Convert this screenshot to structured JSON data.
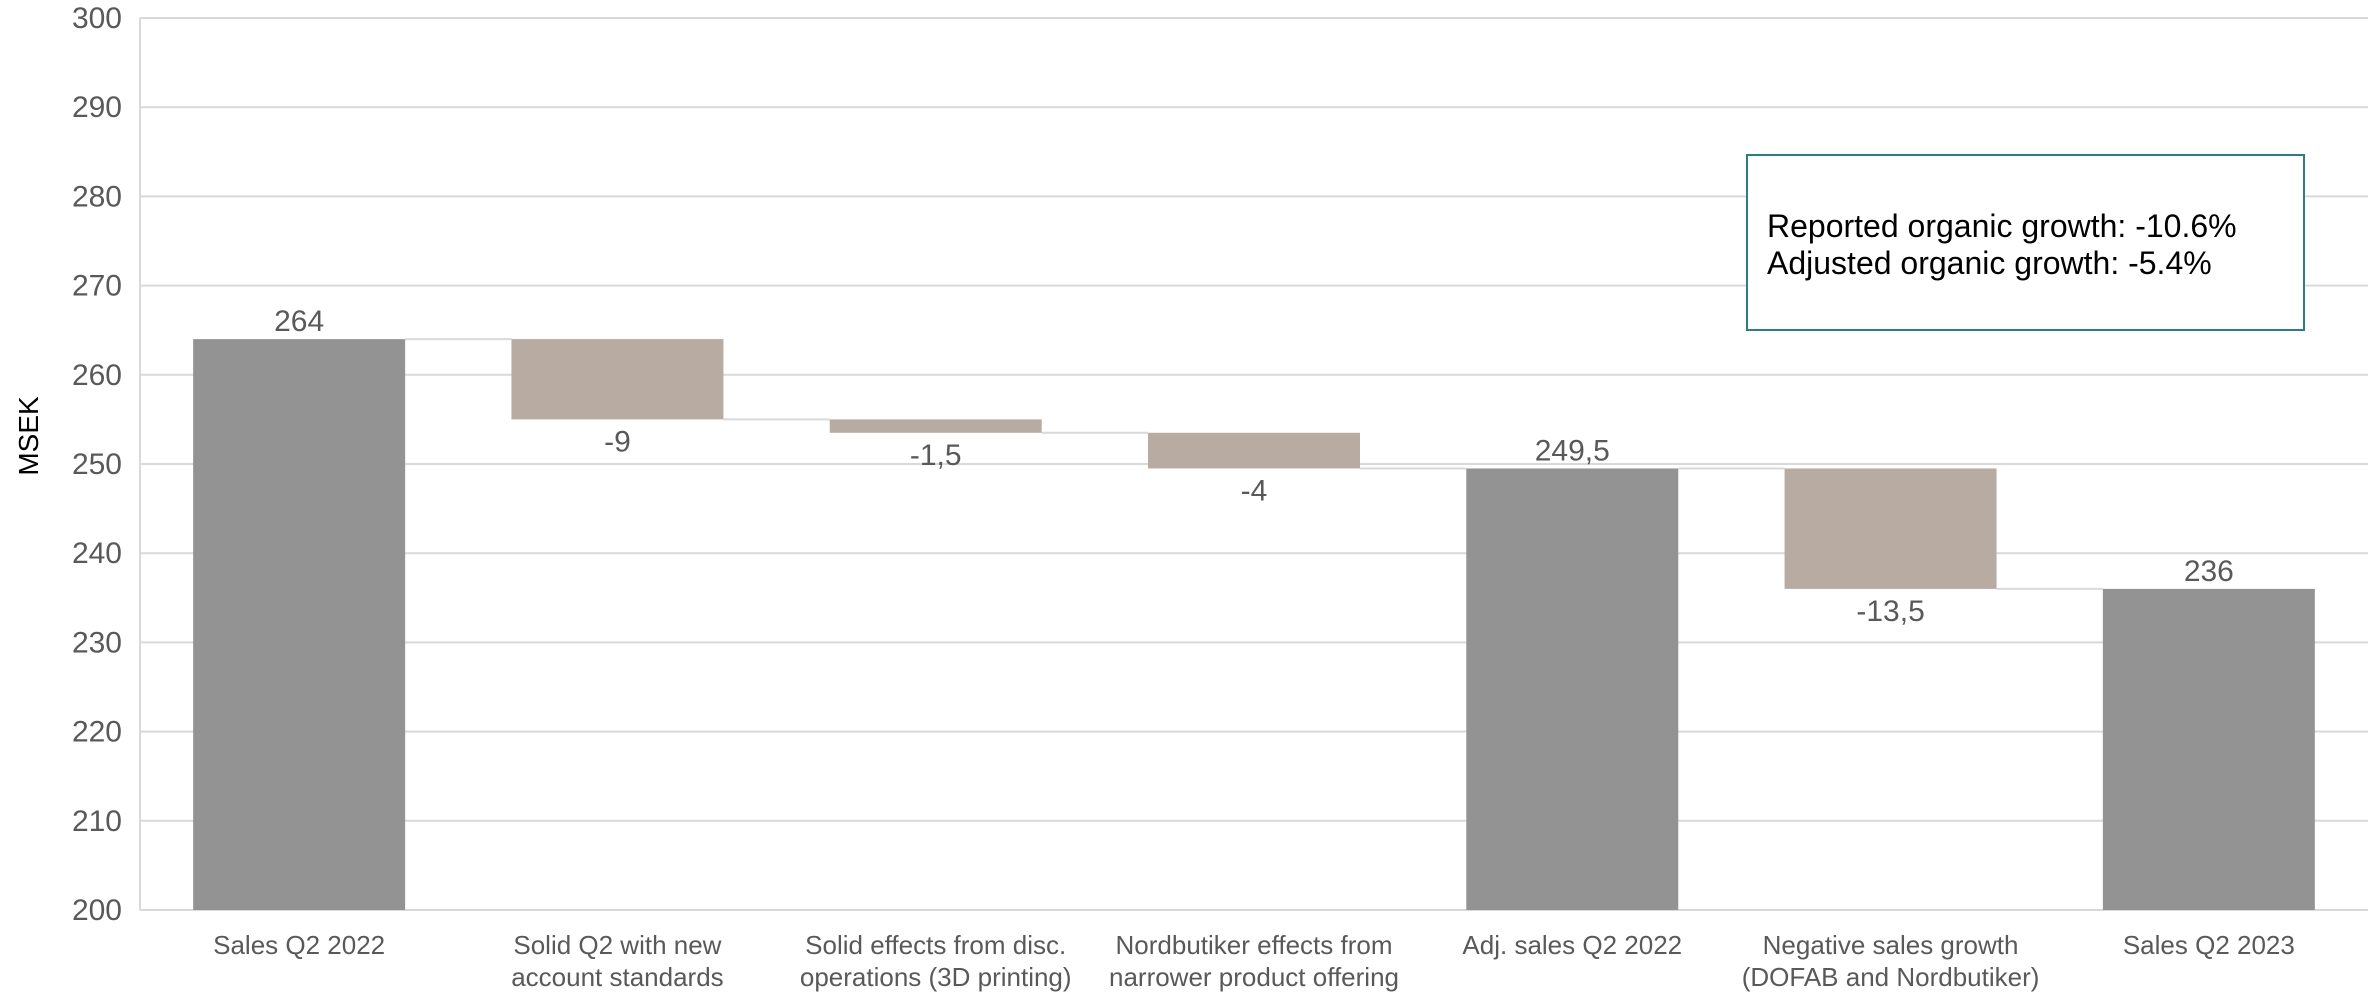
{
  "chart_data": {
    "type": "waterfall",
    "ylabel": "MSEK",
    "ylim": [
      200,
      300
    ],
    "yticks": [
      200,
      210,
      220,
      230,
      240,
      250,
      260,
      270,
      280,
      290,
      300
    ],
    "grid": true,
    "categories": [
      [
        "Sales Q2 2022"
      ],
      [
        "Solid Q2 with new",
        "account standards"
      ],
      [
        "Solid effects from disc.",
        "operations (3D printing)"
      ],
      [
        "Nordbutiker effects from",
        "narrower product offering"
      ],
      [
        "Adj. sales Q2 2022"
      ],
      [
        "Negative sales growth",
        "(DOFAB and Nordbutiker)"
      ],
      [
        "Sales Q2 2023"
      ]
    ],
    "steps": [
      {
        "kind": "total",
        "value": 264,
        "label": "264"
      },
      {
        "kind": "delta",
        "value": -9,
        "label": "-9"
      },
      {
        "kind": "delta",
        "value": -1.5,
        "label": "-1,5"
      },
      {
        "kind": "delta",
        "value": -4,
        "label": "-4"
      },
      {
        "kind": "total",
        "value": 249.5,
        "label": "249,5"
      },
      {
        "kind": "delta",
        "value": -13.5,
        "label": "-13,5"
      },
      {
        "kind": "total",
        "value": 236,
        "label": "236"
      }
    ],
    "colors": {
      "total": "#939393",
      "delta": "#b8aca2",
      "grid": "#d9d9d9",
      "connector": "#d9d9d9",
      "box_border": "#2e7d80"
    },
    "annotation": {
      "lines": [
        "Reported organic growth: -10.6%",
        "Adjusted organic growth: -5.4%"
      ],
      "position": "top-right"
    }
  }
}
